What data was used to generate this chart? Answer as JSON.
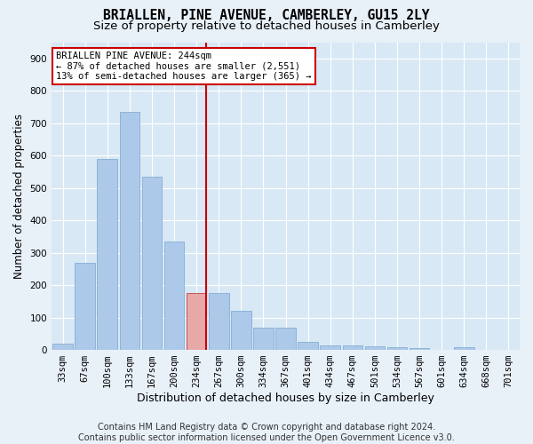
{
  "title": "BRIALLEN, PINE AVENUE, CAMBERLEY, GU15 2LY",
  "subtitle": "Size of property relative to detached houses in Camberley",
  "xlabel": "Distribution of detached houses by size in Camberley",
  "ylabel": "Number of detached properties",
  "footer_line1": "Contains HM Land Registry data © Crown copyright and database right 2024.",
  "footer_line2": "Contains public sector information licensed under the Open Government Licence v3.0.",
  "categories": [
    "33sqm",
    "67sqm",
    "100sqm",
    "133sqm",
    "167sqm",
    "200sqm",
    "234sqm",
    "267sqm",
    "300sqm",
    "334sqm",
    "367sqm",
    "401sqm",
    "434sqm",
    "467sqm",
    "501sqm",
    "534sqm",
    "567sqm",
    "601sqm",
    "634sqm",
    "668sqm",
    "701sqm"
  ],
  "values": [
    20,
    270,
    590,
    735,
    535,
    335,
    175,
    175,
    120,
    70,
    70,
    25,
    15,
    15,
    10,
    8,
    6,
    0,
    8,
    0,
    0
  ],
  "highlight_index": 6,
  "bar_color": "#adc9e9",
  "bar_edge_color": "#85aed4",
  "highlight_bar_color": "#e8a8a8",
  "highlight_bar_edge_color": "#c04040",
  "vline_color": "#cc0000",
  "annotation_text_line1": "BRIALLEN PINE AVENUE: 244sqm",
  "annotation_text_line2": "← 87% of detached houses are smaller (2,551)",
  "annotation_text_line3": "13% of semi-detached houses are larger (365) →",
  "annotation_box_facecolor": "#ffffff",
  "annotation_box_edgecolor": "#cc0000",
  "ylim": [
    0,
    950
  ],
  "yticks": [
    0,
    100,
    200,
    300,
    400,
    500,
    600,
    700,
    800,
    900
  ],
  "bg_color": "#e8f0f8",
  "plot_bg_color": "#d8e8f5",
  "grid_color": "#ffffff",
  "title_fontsize": 10.5,
  "subtitle_fontsize": 9.5,
  "xlabel_fontsize": 9,
  "ylabel_fontsize": 8.5,
  "tick_fontsize": 7.5,
  "annotation_fontsize": 7.5,
  "footer_fontsize": 7
}
